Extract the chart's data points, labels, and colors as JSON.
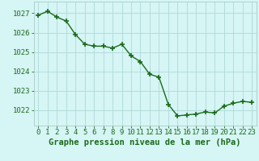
{
  "x": [
    0,
    1,
    2,
    3,
    4,
    5,
    6,
    7,
    8,
    9,
    10,
    11,
    12,
    13,
    14,
    15,
    16,
    17,
    18,
    19,
    20,
    21,
    22,
    23
  ],
  "y": [
    1026.9,
    1027.1,
    1026.8,
    1026.6,
    1025.9,
    1025.4,
    1025.3,
    1025.3,
    1025.2,
    1025.4,
    1024.8,
    1024.5,
    1023.85,
    1023.7,
    1022.3,
    1021.7,
    1021.75,
    1021.8,
    1021.9,
    1021.85,
    1022.2,
    1022.35,
    1022.45,
    1022.4
  ],
  "line_color": "#1a6b1a",
  "marker": "+",
  "marker_size": 4,
  "marker_lw": 1.2,
  "background_color": "#d6f5f5",
  "grid_color": "#b0d8d8",
  "xlabel": "Graphe pression niveau de la mer (hPa)",
  "xlabel_fontsize": 7.5,
  "ylabel_ticks": [
    1022,
    1023,
    1024,
    1025,
    1026,
    1027
  ],
  "ylim": [
    1021.2,
    1027.6
  ],
  "xlim": [
    -0.5,
    23.5
  ],
  "tick_fontsize": 6.5,
  "tick_color": "#1a6b1a",
  "label_color": "#1a6b1a",
  "spine_color": "#aacccc",
  "linewidth": 1.0
}
